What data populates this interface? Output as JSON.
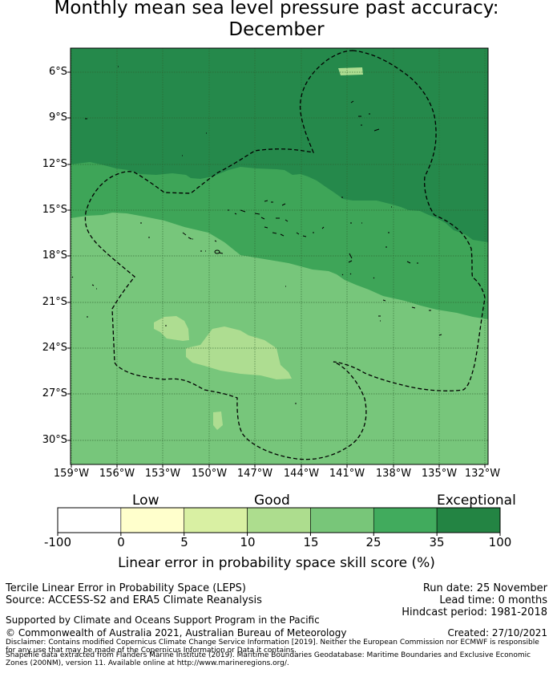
{
  "title": {
    "line1": "Monthly mean sea level pressure past accuracy:",
    "line2": "December"
  },
  "map": {
    "lat_labels": [
      "6°S",
      "9°S",
      "12°S",
      "15°S",
      "18°S",
      "21°S",
      "24°S",
      "27°S",
      "30°S"
    ],
    "lon_labels": [
      "159°W",
      "156°W",
      "153°W",
      "150°W",
      "147°W",
      "144°W",
      "141°W",
      "138°W",
      "135°W",
      "132°W"
    ],
    "regions": [
      {
        "name": "score 35-100",
        "color": "#25894b"
      },
      {
        "name": "score 25-35",
        "color": "#3ea558"
      },
      {
        "name": "score 15-25",
        "color": "#77c67b"
      },
      {
        "name": "score 10-15",
        "color": "#aedd91"
      }
    ],
    "colors": {
      "coast": "#000000",
      "gridline": "#2d5f2d",
      "boundary": "#000000"
    }
  },
  "colorbar": {
    "categories": [
      "Low",
      "Good",
      "Exceptional"
    ],
    "ticks": [
      "-100",
      "0",
      "5",
      "10",
      "15",
      "25",
      "35",
      "100"
    ],
    "colors": [
      "#ffffff",
      "#ffffcc",
      "#d9f0a3",
      "#addd8e",
      "#78c679",
      "#41ab5d",
      "#238443"
    ],
    "label": "Linear error in probability space skill score (%)"
  },
  "info": {
    "line1": "Tercile Linear Error in Probability Space (LEPS)",
    "line2": "Source: ACCESS-S2 and ERA5 Climate Reanalysis",
    "run_date": "Run date: 25 November",
    "lead_time": "Lead time: 0 months",
    "hindcast": "Hindcast period: 1981-2018",
    "support": "Supported by Climate and Oceans Support Program in the Pacific",
    "created": "Created: 27/10/2021",
    "copyright": "© Commonwealth of Australia 2021, Australian Bureau of Meteorology",
    "disclaimer": "Disclaimer: Contains modified Copernicus Climate Change Service Information [2019]. Neither the European Commission nor ECMWF is responsible for any use that may be made of the Copernicus Information or Data it contains.",
    "shapefile": "Shapefile data extracted from Flanders Marine Institute (2019). Maritime Boundaries Geodatabase: Maritime Boundaries and Exclusive Economic Zones (200NM), version 11. Available online at http://www.marineregions.org/."
  }
}
